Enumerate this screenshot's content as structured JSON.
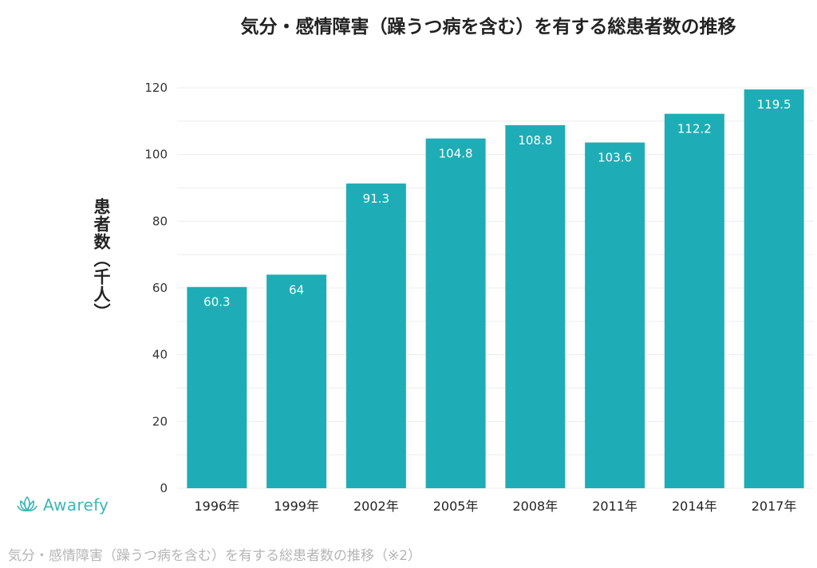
{
  "chart_data": {
    "type": "bar",
    "title": "気分・感情障害（躁うつ病を含む）を有する総患者数の推移",
    "xlabel": "",
    "ylabel": "患者数（千人）",
    "categories": [
      "1996年",
      "1999年",
      "2002年",
      "2005年",
      "2008年",
      "2011年",
      "2014年",
      "2017年"
    ],
    "values": [
      60.3,
      64,
      91.3,
      104.8,
      108.8,
      103.6,
      112.2,
      119.5
    ],
    "value_labels": [
      "60.3",
      "64",
      "91.3",
      "104.8",
      "108.8",
      "103.6",
      "112.2",
      "119.5"
    ],
    "ylim": [
      0,
      120
    ],
    "yticks": [
      0,
      20,
      40,
      60,
      80,
      100,
      120
    ],
    "grid": true,
    "bar_color": "#1eadb6"
  },
  "brand": {
    "name": "Awarefy",
    "color": "#3bb7b7",
    "icon": "lotus-icon"
  },
  "caption": "気分・感情障害（躁うつ病を含む）を有する総患者数の推移（※2）"
}
